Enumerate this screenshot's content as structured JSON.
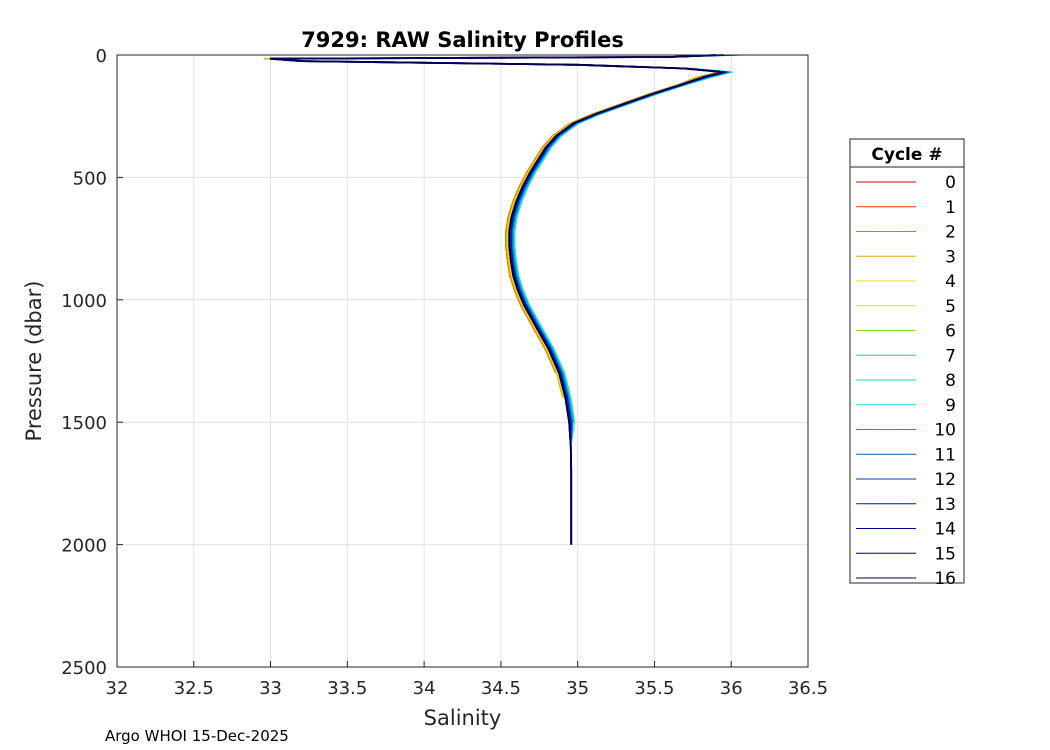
{
  "chart_data": {
    "type": "line",
    "title": "7929: RAW Salinity Profiles",
    "xlabel": "Salinity",
    "ylabel": "Pressure (dbar)",
    "xlim": [
      32,
      36.5
    ],
    "ylim": [
      0,
      2500
    ],
    "y_reversed": true,
    "grid": true,
    "xticks": [
      "32",
      "32.5",
      "33",
      "33.5",
      "34",
      "34.5",
      "35",
      "35.5",
      "36",
      "36.5"
    ],
    "yticks": [
      "0",
      "500",
      "1000",
      "1500",
      "2000",
      "2500"
    ],
    "legend": {
      "title": "Cycle #",
      "position": "right",
      "entries": [
        "0",
        "1",
        "2",
        "3",
        "4",
        "5",
        "6",
        "7",
        "8",
        "9",
        "10",
        "11",
        "12",
        "13",
        "14",
        "15",
        "16"
      ],
      "colors": [
        "#d40000",
        "#ee3300",
        "#f07000",
        "#e8a800",
        "#f0e000",
        "#c8e800",
        "#7fdc2a",
        "#30d060",
        "#10e0a0",
        "#20d8d8",
        "#0098d8",
        "#0060c0",
        "#0040a0",
        "#0010c8",
        "#00008c",
        "#000070",
        "#000050"
      ]
    },
    "base_profile": {
      "pressure": [
        0,
        8,
        15,
        25,
        40,
        55,
        70,
        90,
        120,
        160,
        200,
        240,
        280,
        330,
        380,
        430,
        480,
        540,
        600,
        660,
        720,
        780,
        840,
        900,
        960,
        1020,
        1100,
        1200,
        1300,
        1400,
        1500,
        1600,
        1700,
        1800,
        1900,
        2000
      ],
      "salinity": [
        35.9,
        35.6,
        33.0,
        33.2,
        35.0,
        35.7,
        35.95,
        35.82,
        35.68,
        35.48,
        35.3,
        35.12,
        34.97,
        34.86,
        34.79,
        34.74,
        34.69,
        34.64,
        34.6,
        34.57,
        34.555,
        34.555,
        34.565,
        34.58,
        34.61,
        34.65,
        34.72,
        34.81,
        34.88,
        34.92,
        34.945,
        34.955,
        34.958,
        34.958,
        34.958,
        34.958
      ]
    },
    "series": [
      {
        "name": "0",
        "surface_salinity": 35.9,
        "salinity_offset": 0.0,
        "max_pressure": 1320
      },
      {
        "name": "1",
        "surface_salinity": 35.92,
        "salinity_offset": -0.02,
        "max_pressure": 1330
      },
      {
        "name": "2",
        "surface_salinity": 35.88,
        "salinity_offset": -0.04,
        "max_pressure": 1340
      },
      {
        "name": "3",
        "surface_salinity": 35.9,
        "salinity_offset": -0.03,
        "max_pressure": 1480
      },
      {
        "name": "4",
        "surface_salinity": 35.95,
        "salinity_offset": -0.02,
        "max_pressure": 1480
      },
      {
        "name": "5",
        "surface_salinity": 35.85,
        "salinity_offset": -0.01,
        "max_pressure": 1490
      },
      {
        "name": "6",
        "surface_salinity": 35.8,
        "salinity_offset": 0.02,
        "max_pressure": 1490
      },
      {
        "name": "7",
        "surface_salinity": 35.75,
        "salinity_offset": 0.03,
        "max_pressure": 1500
      },
      {
        "name": "8",
        "surface_salinity": 36.0,
        "salinity_offset": 0.05,
        "max_pressure": 1500
      },
      {
        "name": "9",
        "surface_salinity": 36.1,
        "salinity_offset": 0.06,
        "max_pressure": 2000
      },
      {
        "name": "10",
        "surface_salinity": 36.0,
        "salinity_offset": 0.04,
        "max_pressure": 2000
      },
      {
        "name": "11",
        "surface_salinity": 35.95,
        "salinity_offset": 0.03,
        "max_pressure": 2000
      },
      {
        "name": "12",
        "surface_salinity": 35.9,
        "salinity_offset": 0.01,
        "max_pressure": 2000
      },
      {
        "name": "13",
        "surface_salinity": 36.05,
        "salinity_offset": 0.02,
        "max_pressure": 2000
      },
      {
        "name": "14",
        "surface_salinity": 35.9,
        "salinity_offset": 0.0,
        "max_pressure": 2000
      },
      {
        "name": "15",
        "surface_salinity": 35.95,
        "salinity_offset": 0.0,
        "max_pressure": 2000
      },
      {
        "name": "16",
        "surface_salinity": 35.9,
        "salinity_offset": 0.0,
        "max_pressure": 2000
      }
    ]
  },
  "footer": "Argo WHOI 15-Dec-2025"
}
